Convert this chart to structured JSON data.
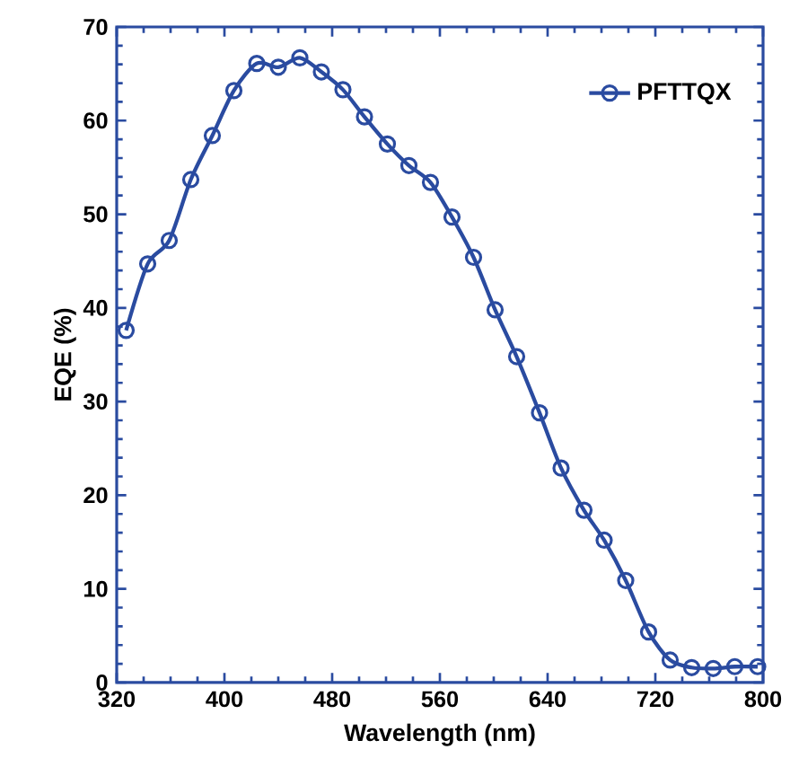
{
  "chart_data": {
    "type": "line",
    "xlabel": "Wavelength (nm)",
    "ylabel": "EQE (%)",
    "xlim": [
      320,
      800
    ],
    "ylim": [
      0,
      70
    ],
    "xticks": [
      320,
      400,
      480,
      560,
      640,
      720,
      800
    ],
    "yticks": [
      0,
      10,
      20,
      30,
      40,
      50,
      60,
      70
    ],
    "legend": "top right",
    "marker": "circle",
    "line_style": "solid",
    "series": [
      {
        "name": "PFTTQX",
        "color": "#2a4ba0",
        "x": [
          327,
          343,
          359,
          375,
          391,
          407,
          424,
          440,
          456,
          472,
          488,
          504,
          521,
          537,
          553,
          569,
          585,
          601,
          617,
          634,
          650,
          667,
          682,
          698,
          715,
          731,
          747,
          763,
          779,
          796
        ],
        "values": [
          37.6,
          44.7,
          47.2,
          53.7,
          58.4,
          63.2,
          66.1,
          65.7,
          66.7,
          65.2,
          63.3,
          60.4,
          57.5,
          55.2,
          53.4,
          49.7,
          45.4,
          39.8,
          34.8,
          28.8,
          22.9,
          18.4,
          15.2,
          10.9,
          5.4,
          2.4,
          1.6,
          1.5,
          1.7,
          1.7
        ]
      }
    ]
  }
}
